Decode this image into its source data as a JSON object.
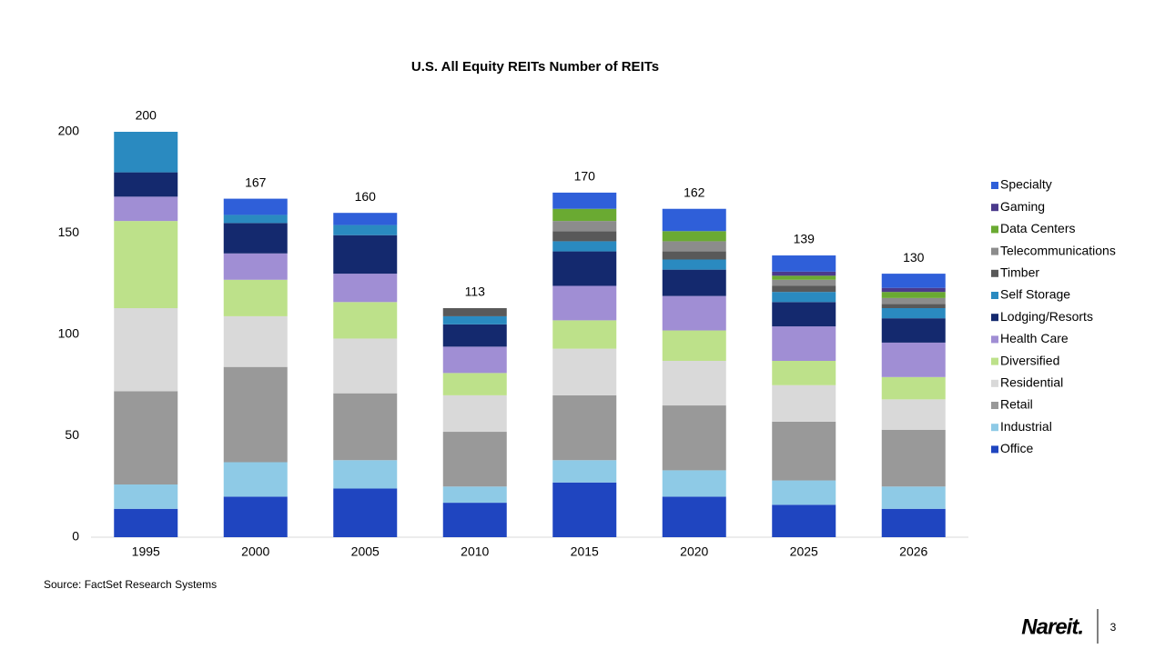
{
  "chart_data": {
    "type": "stacked_bar",
    "title": "U.S. All Equity REITs Number of REITs",
    "categories": [
      "1995",
      "2000",
      "2005",
      "2010",
      "2015",
      "2020",
      "2025",
      "2026"
    ],
    "series": [
      {
        "name": "Office",
        "color": "#1f45c0",
        "values": [
          14,
          20,
          24,
          17,
          27,
          20,
          16,
          14
        ]
      },
      {
        "name": "Industrial",
        "color": "#8ecae6",
        "values": [
          12,
          17,
          14,
          8,
          11,
          13,
          12,
          11
        ]
      },
      {
        "name": "Retail",
        "color": "#999999",
        "values": [
          46,
          47,
          33,
          27,
          32,
          32,
          29,
          28
        ]
      },
      {
        "name": "Residential",
        "color": "#d9d9d9",
        "values": [
          41,
          25,
          27,
          18,
          23,
          22,
          18,
          15
        ]
      },
      {
        "name": "Diversified",
        "color": "#bde18a",
        "values": [
          43,
          18,
          18,
          11,
          14,
          15,
          12,
          11
        ]
      },
      {
        "name": "Health Care",
        "color": "#a08ed4",
        "values": [
          12,
          13,
          14,
          13,
          17,
          17,
          17,
          17
        ]
      },
      {
        "name": "Lodging/Resorts",
        "color": "#14296e",
        "values": [
          12,
          15,
          19,
          11,
          17,
          13,
          12,
          12
        ]
      },
      {
        "name": "Self Storage",
        "color": "#2a8ac0",
        "values": [
          20,
          4,
          5,
          4,
          5,
          5,
          5,
          5
        ]
      },
      {
        "name": "Timber",
        "color": "#595959",
        "values": [
          0,
          0,
          0,
          4,
          5,
          4,
          3,
          2
        ]
      },
      {
        "name": "Telecommunications",
        "color": "#8c8c8c",
        "values": [
          0,
          0,
          0,
          0,
          5,
          5,
          3,
          3
        ]
      },
      {
        "name": "Data Centers",
        "color": "#6aaa32",
        "values": [
          0,
          0,
          0,
          0,
          6,
          5,
          2,
          3
        ]
      },
      {
        "name": "Gaming",
        "color": "#4b3a8c",
        "values": [
          0,
          0,
          0,
          0,
          0,
          0,
          2,
          2
        ]
      },
      {
        "name": "Specialty",
        "color": "#2f5fd9",
        "values": [
          0,
          8,
          6,
          0,
          8,
          11,
          8,
          7
        ]
      }
    ],
    "totals": [
      200,
      167,
      160,
      113,
      170,
      162,
      139,
      130
    ],
    "ylim": [
      0,
      200
    ],
    "yticks": [
      0,
      50,
      100,
      150,
      200
    ],
    "source": "Source: FactSet Research Systems"
  },
  "footer": {
    "logo": "Nareit.",
    "page": 3
  }
}
